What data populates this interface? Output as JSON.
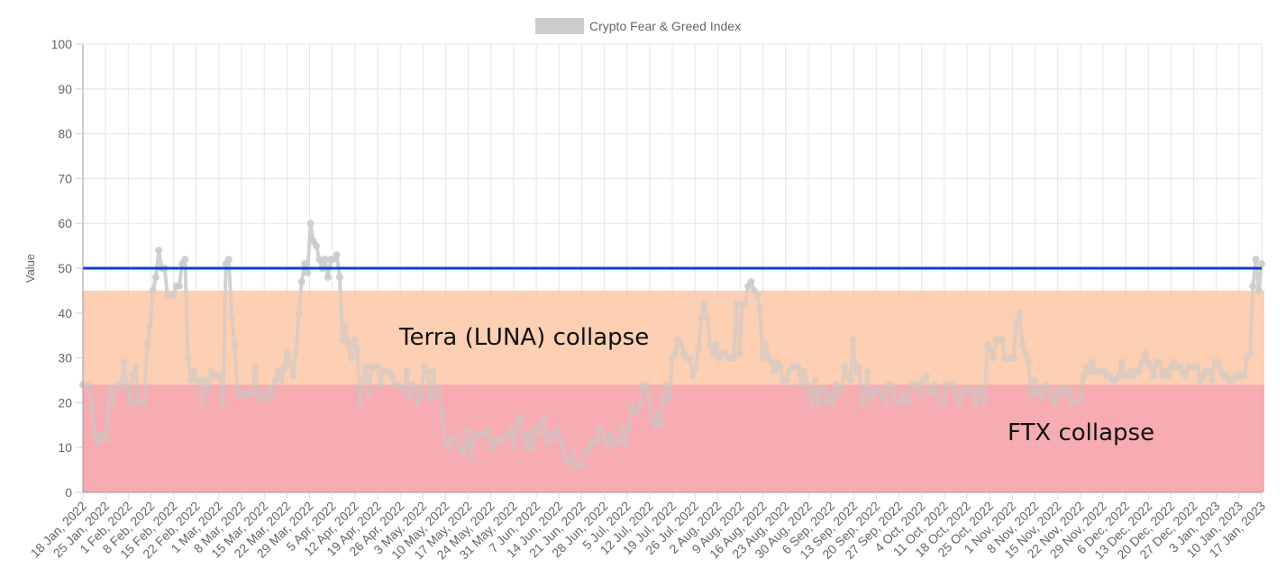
{
  "chart_data": {
    "type": "line",
    "title": "",
    "legend": {
      "position": "top",
      "entries": [
        {
          "label": "Crypto Fear & Greed Index",
          "swatch_color": "#cccccc"
        }
      ]
    },
    "xlabel": "",
    "ylabel": "Value",
    "ylim": [
      0,
      100
    ],
    "yticks": [
      0,
      10,
      20,
      30,
      40,
      50,
      60,
      70,
      80,
      90,
      100
    ],
    "grid": true,
    "x_tick_labels": [
      "18 Jan, 2022",
      "25 Jan, 2022",
      "1 Feb, 2022",
      "8 Feb, 2022",
      "15 Feb, 2022",
      "22 Feb, 2022",
      "1 Mar, 2022",
      "8 Mar, 2022",
      "15 Mar, 2022",
      "22 Mar, 2022",
      "29 Mar, 2022",
      "5 Apr, 2022",
      "12 Apr, 2022",
      "19 Apr, 2022",
      "26 Apr, 2022",
      "3 May, 2022",
      "10 May, 2022",
      "17 May, 2022",
      "24 May, 2022",
      "31 May, 2022",
      "7 Jun, 2022",
      "14 Jun, 2022",
      "21 Jun, 2022",
      "28 Jun, 2022",
      "5 Jul, 2022",
      "12 Jul, 2022",
      "19 Jul, 2022",
      "26 Jul, 2022",
      "2 Aug, 2022",
      "9 Aug, 2022",
      "16 Aug, 2022",
      "23 Aug, 2022",
      "30 Aug, 2022",
      "6 Sep, 2022",
      "13 Sep, 2022",
      "20 Sep, 2022",
      "27 Sep, 2022",
      "4 Oct, 2022",
      "11 Oct, 2022",
      "18 Oct, 2022",
      "25 Oct, 2022",
      "1 Nov, 2022",
      "8 Nov, 2022",
      "15 Nov, 2022",
      "22 Nov, 2022",
      "29 Nov, 2022",
      "6 Dec, 2022",
      "13 Dec, 2022",
      "20 Dec, 2022",
      "27 Dec, 2022",
      "3 Jan, 2023",
      "10 Jan, 2023",
      "17 Jan, 2023"
    ],
    "x_start": "18 Jan, 2022",
    "x_end": "17 Jan, 2023",
    "series": [
      {
        "name": "Crypto Fear & Greed Index",
        "color": "#cccccc",
        "values": [
          24,
          24,
          24,
          19,
          13,
          11,
          13,
          12,
          12,
          23,
          20,
          23,
          24,
          24,
          29,
          24,
          20,
          26,
          28,
          20,
          20,
          20,
          33,
          37,
          45,
          48,
          54,
          50,
          50,
          44,
          44,
          44,
          46,
          46,
          51,
          52,
          30,
          25,
          27,
          25,
          25,
          20,
          25,
          23,
          27,
          26,
          26,
          26,
          20,
          51,
          52,
          39,
          33,
          22,
          22,
          22,
          21,
          22,
          22,
          28,
          22,
          21,
          22,
          21,
          23,
          22,
          25,
          27,
          25,
          28,
          31,
          29,
          26,
          31,
          40,
          47,
          51,
          49,
          60,
          56,
          55,
          52,
          50,
          52,
          48,
          52,
          52,
          53,
          48,
          34,
          37,
          33,
          30,
          34,
          32,
          20,
          25,
          28,
          22,
          28,
          28,
          28,
          24,
          27,
          27,
          27,
          26,
          24,
          24,
          23,
          23,
          27,
          21,
          24,
          23,
          20,
          22,
          28,
          27,
          21,
          27,
          22,
          23,
          18,
          11,
          10,
          12,
          12,
          12,
          10,
          9,
          10,
          14,
          8,
          12,
          13,
          13,
          13,
          13,
          14,
          10,
          12,
          11,
          12,
          12,
          12,
          13,
          14,
          10,
          16,
          17,
          13,
          10,
          13,
          10,
          14,
          13,
          15,
          17,
          11,
          13,
          12,
          13,
          14,
          11,
          8,
          7,
          7,
          9,
          6,
          6,
          6,
          9,
          9,
          11,
          11,
          11,
          14,
          14,
          12,
          10,
          13,
          11,
          11,
          12,
          14,
          11,
          14,
          19,
          18,
          18,
          20,
          24,
          24,
          22,
          16,
          15,
          18,
          15,
          21,
          24,
          21,
          30,
          31,
          34,
          33,
          31,
          30,
          30,
          26,
          28,
          32,
          39,
          42,
          39,
          33,
          31,
          33,
          30,
          31,
          31,
          30,
          30,
          30,
          42,
          31,
          42,
          42,
          46,
          47,
          45,
          44,
          41,
          30,
          33,
          30,
          29,
          27,
          29,
          28,
          25,
          25,
          27,
          28,
          28,
          28,
          24,
          27,
          24,
          22,
          20,
          25,
          20,
          23,
          23,
          20,
          22,
          20,
          24,
          22,
          23,
          28,
          26,
          25,
          34,
          27,
          28,
          20,
          22,
          27,
          21,
          22,
          23,
          23,
          22,
          20,
          24,
          24,
          22,
          20,
          20,
          22,
          20,
          20,
          24,
          24,
          24,
          22,
          25,
          26,
          23,
          22,
          24,
          22,
          20,
          20,
          24,
          24,
          24,
          22,
          20,
          22,
          23,
          23,
          23,
          22,
          20,
          23,
          22,
          20,
          33,
          32,
          30,
          34,
          34,
          34,
          30,
          30,
          30,
          30,
          38,
          40,
          33,
          31,
          29,
          22,
          25,
          22,
          23,
          21,
          24,
          23,
          22,
          20,
          22,
          23,
          23,
          22,
          23,
          20,
          20,
          20,
          22,
          26,
          28,
          27,
          29,
          27,
          27,
          27,
          27,
          26,
          26,
          25,
          25,
          26,
          29,
          26,
          26,
          27,
          26,
          27,
          27,
          29,
          31,
          29,
          28,
          26,
          29,
          29,
          26,
          27,
          26,
          28,
          29,
          28,
          28,
          27,
          26,
          28,
          28,
          28,
          28,
          25,
          26,
          27,
          27,
          25,
          29,
          29,
          27,
          26,
          26,
          25,
          25,
          26,
          26,
          26,
          26,
          30,
          31,
          46,
          52,
          45,
          51
        ]
      }
    ],
    "reference_lines": [
      {
        "y": 50,
        "color": "#0044cc",
        "label": ""
      }
    ],
    "bands": [
      {
        "y_from": 24,
        "y_to": 45,
        "color": "#fcc8a8",
        "label": "Terra (LUNA) collapse"
      },
      {
        "y_from": 0,
        "y_to": 24,
        "color": "#f5a0a5",
        "label": "FTX collapse"
      }
    ],
    "annotations": [
      {
        "text": "Terra (LUNA) collapse",
        "x_date": "5 May, 2022",
        "y": 34
      },
      {
        "text": "FTX collapse",
        "x_date": "10 Nov, 2022",
        "y": 13
      }
    ]
  }
}
